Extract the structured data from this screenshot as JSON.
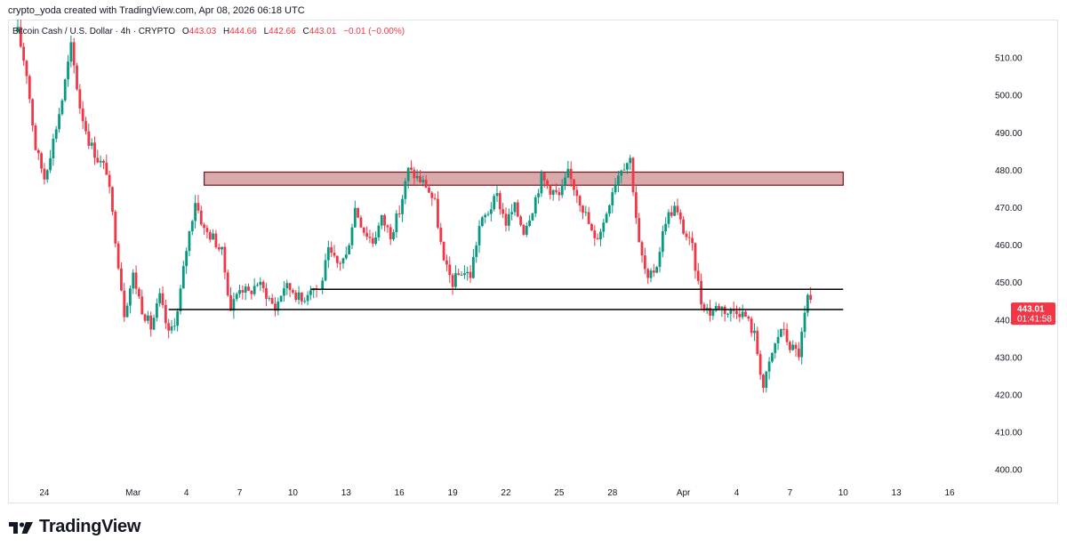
{
  "header": {
    "credit": "crypto_yoda created with TradingView.com, Apr 08, 2026 06:18 UTC"
  },
  "legend": {
    "symbol": "Bitcoin Cash / U.S. Dollar · 4h · CRYPTO",
    "o_label": "O",
    "o_value": "443.03",
    "h_label": "H",
    "h_value": "444.66",
    "l_label": "L",
    "l_value": "442.66",
    "c_label": "C",
    "c_value": "443.01",
    "change": "−0.01 (−0.00%)"
  },
  "price_tag": {
    "price": "443.01",
    "countdown": "01:41:58"
  },
  "colors": {
    "up": "#089981",
    "down": "#f23645",
    "resistance_fill": "#d9a9ab",
    "resistance_border": "#7a1416",
    "line": "#000000",
    "tag": "#f23645"
  },
  "brand": {
    "name": "TradingView",
    "icon": "tradingview-logo-icon"
  },
  "chart_data": {
    "type": "candlestick",
    "title": "Bitcoin Cash / U.S. Dollar · 4h · CRYPTO",
    "y_axis": {
      "min": 396,
      "max": 520,
      "ticks": [
        400,
        410,
        420,
        430,
        440,
        450,
        460,
        470,
        480,
        490,
        500,
        510
      ],
      "side": "right"
    },
    "x_axis": {
      "range": [
        "2026-02-22",
        "2026-04-18"
      ],
      "ticks": [
        {
          "label": "24",
          "date": "2026-02-24"
        },
        {
          "label": "Mar",
          "date": "2026-03-01"
        },
        {
          "label": "4",
          "date": "2026-03-04"
        },
        {
          "label": "7",
          "date": "2026-03-07"
        },
        {
          "label": "10",
          "date": "2026-03-10"
        },
        {
          "label": "13",
          "date": "2026-03-13"
        },
        {
          "label": "16",
          "date": "2026-03-16"
        },
        {
          "label": "19",
          "date": "2026-03-19"
        },
        {
          "label": "22",
          "date": "2026-03-22"
        },
        {
          "label": "25",
          "date": "2026-03-25"
        },
        {
          "label": "28",
          "date": "2026-03-28"
        },
        {
          "label": "Apr",
          "date": "2026-04-01"
        },
        {
          "label": "4",
          "date": "2026-04-04"
        },
        {
          "label": "7",
          "date": "2026-04-07"
        },
        {
          "label": "10",
          "date": "2026-04-10"
        },
        {
          "label": "13",
          "date": "2026-04-13"
        },
        {
          "label": "16",
          "date": "2026-04-16"
        }
      ]
    },
    "grid": false,
    "close_path": [
      [
        "2026-02-22 12:00",
        517
      ],
      [
        "2026-02-23 00:00",
        506
      ],
      [
        "2026-02-23 12:00",
        486
      ],
      [
        "2026-02-24 00:00",
        478
      ],
      [
        "2026-02-24 12:00",
        488
      ],
      [
        "2026-02-25 00:00",
        499
      ],
      [
        "2026-02-25 12:00",
        513
      ],
      [
        "2026-02-26 00:00",
        497
      ],
      [
        "2026-02-26 12:00",
        488
      ],
      [
        "2026-02-27 00:00",
        483
      ],
      [
        "2026-02-27 12:00",
        480
      ],
      [
        "2026-02-28 00:00",
        462
      ],
      [
        "2026-02-28 12:00",
        442
      ],
      [
        "2026-03-01 00:00",
        452
      ],
      [
        "2026-03-01 12:00",
        443
      ],
      [
        "2026-03-02 00:00",
        438
      ],
      [
        "2026-03-02 12:00",
        446
      ],
      [
        "2026-03-03 00:00",
        436
      ],
      [
        "2026-03-03 12:00",
        442
      ],
      [
        "2026-03-04 00:00",
        459
      ],
      [
        "2026-03-04 12:00",
        472
      ],
      [
        "2026-03-05 00:00",
        464
      ],
      [
        "2026-03-05 12:00",
        462
      ],
      [
        "2026-03-06 00:00",
        458
      ],
      [
        "2026-03-06 12:00",
        443
      ],
      [
        "2026-03-07 00:00",
        449
      ],
      [
        "2026-03-07 12:00",
        447
      ],
      [
        "2026-03-08 00:00",
        450
      ],
      [
        "2026-03-08 12:00",
        447
      ],
      [
        "2026-03-09 00:00",
        443
      ],
      [
        "2026-03-09 12:00",
        449
      ],
      [
        "2026-03-10 00:00",
        448
      ],
      [
        "2026-03-10 12:00",
        445
      ],
      [
        "2026-03-11 00:00",
        449
      ],
      [
        "2026-03-11 12:00",
        448
      ],
      [
        "2026-03-12 00:00",
        458
      ],
      [
        "2026-03-12 12:00",
        455
      ],
      [
        "2026-03-13 00:00",
        457
      ],
      [
        "2026-03-13 12:00",
        470
      ],
      [
        "2026-03-14 00:00",
        464
      ],
      [
        "2026-03-14 12:00",
        461
      ],
      [
        "2026-03-15 00:00",
        467
      ],
      [
        "2026-03-15 12:00",
        463
      ],
      [
        "2026-03-16 00:00",
        469
      ],
      [
        "2026-03-16 12:00",
        480
      ],
      [
        "2026-03-17 00:00",
        478
      ],
      [
        "2026-03-17 12:00",
        476
      ],
      [
        "2026-03-18 00:00",
        471
      ],
      [
        "2026-03-18 12:00",
        455
      ],
      [
        "2026-03-19 00:00",
        450
      ],
      [
        "2026-03-19 12:00",
        453
      ],
      [
        "2026-03-20 00:00",
        452
      ],
      [
        "2026-03-20 12:00",
        465
      ],
      [
        "2026-03-21 00:00",
        469
      ],
      [
        "2026-03-21 12:00",
        473
      ],
      [
        "2026-03-22 00:00",
        466
      ],
      [
        "2026-03-22 12:00",
        470
      ],
      [
        "2026-03-23 00:00",
        464
      ],
      [
        "2026-03-23 12:00",
        470
      ],
      [
        "2026-03-24 00:00",
        478
      ],
      [
        "2026-03-24 12:00",
        475
      ],
      [
        "2026-03-25 00:00",
        473
      ],
      [
        "2026-03-25 12:00",
        479
      ],
      [
        "2026-03-26 00:00",
        474
      ],
      [
        "2026-03-26 12:00",
        468
      ],
      [
        "2026-03-27 00:00",
        461
      ],
      [
        "2026-03-27 12:00",
        466
      ],
      [
        "2026-03-28 00:00",
        475
      ],
      [
        "2026-03-28 12:00",
        481
      ],
      [
        "2026-03-29 00:00",
        483
      ],
      [
        "2026-03-29 12:00",
        460
      ],
      [
        "2026-03-30 00:00",
        450
      ],
      [
        "2026-03-30 12:00",
        455
      ],
      [
        "2026-03-31 00:00",
        467
      ],
      [
        "2026-03-31 12:00",
        470
      ],
      [
        "2026-04-01 00:00",
        464
      ],
      [
        "2026-04-01 12:00",
        459
      ],
      [
        "2026-04-02 00:00",
        445
      ],
      [
        "2026-04-02 12:00",
        442
      ],
      [
        "2026-04-03 00:00",
        444
      ],
      [
        "2026-04-03 12:00",
        442
      ],
      [
        "2026-04-04 00:00",
        443
      ],
      [
        "2026-04-04 12:00",
        441
      ],
      [
        "2026-04-05 00:00",
        436
      ],
      [
        "2026-04-05 12:00",
        422
      ],
      [
        "2026-04-06 00:00",
        431
      ],
      [
        "2026-04-06 12:00",
        438
      ],
      [
        "2026-04-07 00:00",
        433
      ],
      [
        "2026-04-07 12:00",
        431
      ],
      [
        "2026-04-08 00:00",
        446
      ],
      [
        "2026-04-08 06:00",
        443.01
      ]
    ],
    "resistance_zone": {
      "from": "2026-03-05",
      "to": "2026-04-10",
      "low": 476,
      "high": 479.5
    },
    "horizontal_lines": [
      {
        "from": "2026-03-11",
        "to": "2026-04-10",
        "price": 448.2
      },
      {
        "from": "2026-03-03",
        "to": "2026-04-10",
        "price": 442.8
      }
    ],
    "last_price": 443.01
  }
}
